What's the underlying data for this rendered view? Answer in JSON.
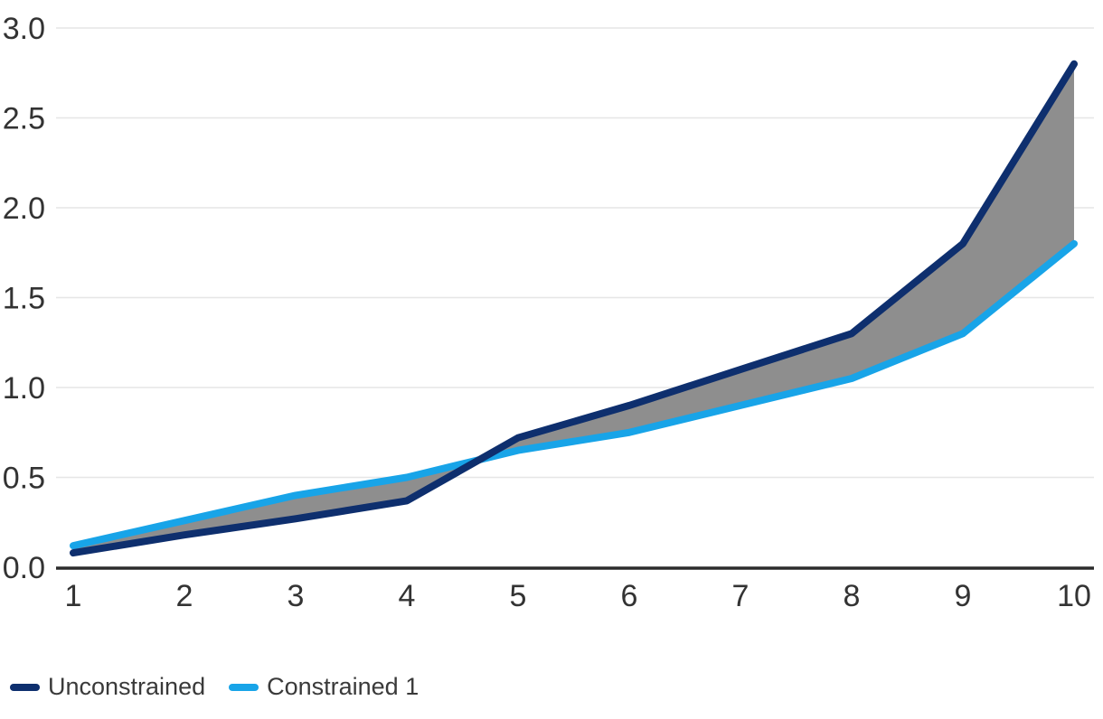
{
  "chart_data": {
    "type": "line",
    "title": "",
    "xlabel": "",
    "ylabel": "",
    "x": [
      1,
      2,
      3,
      4,
      5,
      6,
      7,
      8,
      9,
      10
    ],
    "series": [
      {
        "name": "Unconstrained",
        "color": "#0E2F6E",
        "values": [
          0.08,
          0.18,
          0.27,
          0.37,
          0.72,
          0.9,
          1.1,
          1.3,
          1.8,
          2.8
        ]
      },
      {
        "name": "Constrained 1",
        "color": "#18A4E8",
        "values": [
          0.12,
          0.26,
          0.4,
          0.5,
          0.65,
          0.75,
          0.9,
          1.05,
          1.3,
          1.8
        ]
      }
    ],
    "fill_between": {
      "between": [
        "Unconstrained",
        "Constrained 1"
      ],
      "color": "#8E8E8E"
    },
    "xlim": [
      1,
      10
    ],
    "ylim": [
      0,
      3
    ],
    "xticks": {
      "values": [
        1,
        2,
        3,
        4,
        5,
        6,
        7,
        8,
        9,
        10
      ],
      "labels": [
        "1",
        "2",
        "3",
        "4",
        "5",
        "6",
        "7",
        "8",
        "9",
        "10"
      ]
    },
    "yticks": {
      "values": [
        0,
        0.5,
        1,
        1.5,
        2,
        2.5,
        3
      ],
      "labels": [
        "0.0",
        "0.5",
        "1.0",
        "1.5",
        "2.0",
        "2.5",
        "3.0"
      ]
    },
    "grid": "horizontal",
    "legend_position": "bottom-left"
  },
  "legend": {
    "items": [
      {
        "label": "Unconstrained",
        "color": "#0E2F6E"
      },
      {
        "label": "Constrained 1",
        "color": "#18A4E8"
      }
    ]
  },
  "colors": {
    "grid": "#E6E6E6",
    "axis": "#2B2B2B",
    "tick_text": "#333333",
    "legend_text": "#3A3A3A",
    "background": "#FFFFFF"
  }
}
